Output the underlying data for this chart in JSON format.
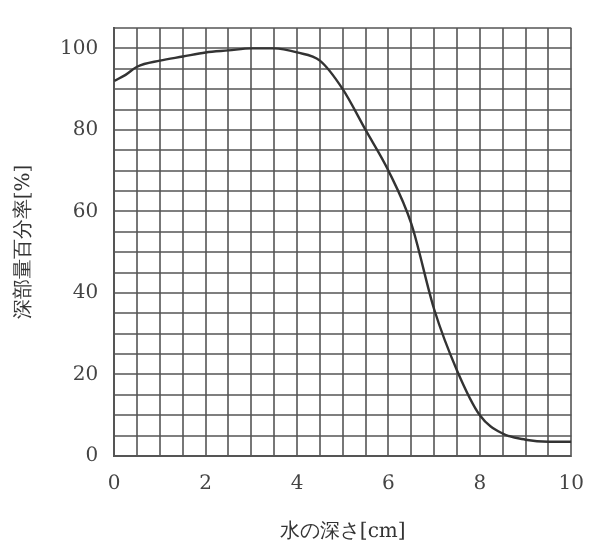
{
  "chart_data": {
    "type": "line",
    "xlabel": "水の深さ[cm]",
    "ylabel": "深部量百分率[%]",
    "x": [
      0,
      0.25,
      0.5,
      1,
      1.5,
      2,
      2.5,
      3,
      3.5,
      4,
      4.5,
      5,
      5.5,
      6,
      6.5,
      7,
      7.5,
      8,
      8.5,
      9,
      9.5,
      10
    ],
    "series": [
      {
        "color": "#333333",
        "values": [
          92,
          93.5,
          95.5,
          97,
          98,
          99,
          99.5,
          100,
          100,
          99,
          97,
          90,
          80,
          70,
          57,
          36,
          21,
          10,
          5.5,
          4,
          3.5,
          3.5
        ]
      }
    ],
    "xlim": [
      0,
      10
    ],
    "ylim": [
      0,
      105
    ],
    "xticks": [
      0,
      {
        "value": 0.5,
        "label": null
      },
      {
        "value": 1,
        "label": null
      },
      {
        "value": 1.5,
        "label": null
      },
      2,
      {
        "value": 2.5,
        "label": null
      },
      {
        "value": 3,
        "label": null
      },
      {
        "value": 3.5,
        "label": null
      },
      4,
      {
        "value": 4.5,
        "label": null
      },
      {
        "value": 5,
        "label": null
      },
      {
        "value": 5.5,
        "label": null
      },
      6,
      {
        "value": 6.5,
        "label": null
      },
      {
        "value": 7,
        "label": null
      },
      {
        "value": 7.5,
        "label": null
      },
      8,
      {
        "value": 8.5,
        "label": null
      },
      {
        "value": 9,
        "label": null
      },
      {
        "value": 9.5,
        "label": null
      },
      10
    ],
    "yticks": [
      0,
      {
        "value": 5,
        "label": null
      },
      {
        "value": 10,
        "label": null
      },
      {
        "value": 15,
        "label": null
      },
      20,
      {
        "value": 25,
        "label": null
      },
      {
        "value": 30,
        "label": null
      },
      {
        "value": 35,
        "label": null
      },
      40,
      {
        "value": 45,
        "label": null
      },
      {
        "value": 50,
        "label": null
      },
      {
        "value": 55,
        "label": null
      },
      60,
      {
        "value": 65,
        "label": null
      },
      {
        "value": 70,
        "label": null
      },
      {
        "value": 75,
        "label": null
      },
      80,
      {
        "value": 85,
        "label": null
      },
      {
        "value": 90,
        "label": null
      },
      {
        "value": 95,
        "label": null
      },
      100,
      {
        "value": 105,
        "label": null
      }
    ],
    "grid": true,
    "legend": false,
    "marker": "none",
    "line_style": "solid"
  }
}
